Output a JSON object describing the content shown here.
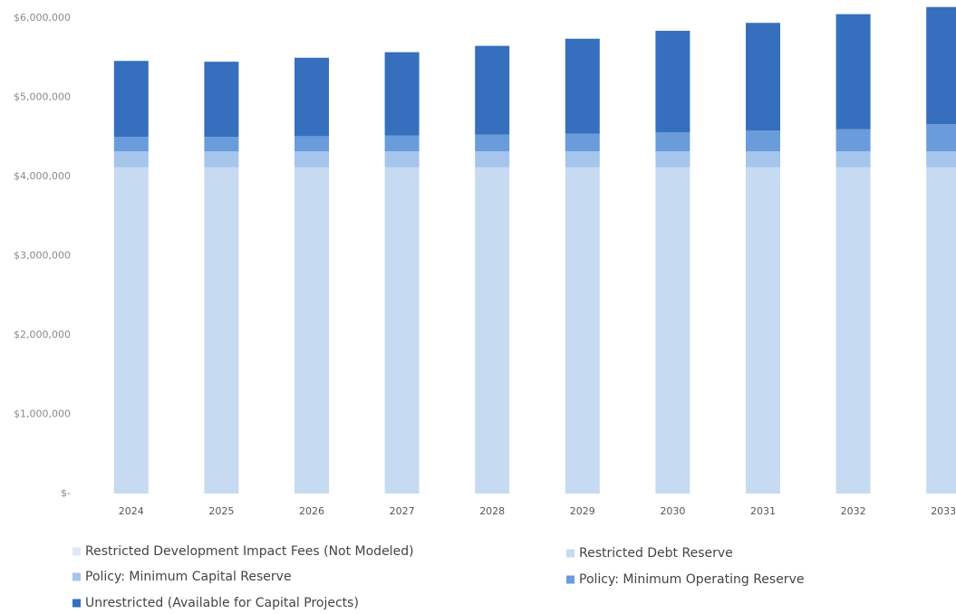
{
  "chart_data": {
    "type": "stacked_bar",
    "categories": [
      "2024",
      "2025",
      "2026",
      "2027",
      "2028",
      "2029",
      "2030",
      "2031",
      "2032",
      "2033"
    ],
    "series": [
      {
        "name": "Restricted Development Impact Fees (Not Modeled)",
        "color": "#dfe7f2",
        "values": [
          0,
          0,
          0,
          0,
          0,
          0,
          0,
          0,
          0,
          0
        ]
      },
      {
        "name": "Restricted Debt Reserve",
        "color": "#c6daf2",
        "values": [
          4120000,
          4120000,
          4120000,
          4120000,
          4120000,
          4120000,
          4120000,
          4120000,
          4120000,
          4120000
        ]
      },
      {
        "name": "Policy: Minimum Capital Reserve",
        "color": "#a5c5ec",
        "values": [
          200000,
          200000,
          200000,
          200000,
          200000,
          200000,
          200000,
          200000,
          200000,
          200000
        ]
      },
      {
        "name": "Policy: Minimum Operating Reserve",
        "color": "#6a9cdb",
        "values": [
          180000,
          180000,
          190000,
          200000,
          210000,
          220000,
          240000,
          260000,
          280000,
          340000
        ]
      },
      {
        "name": "Unrestricted (Available for Capital Projects)",
        "color": "#356fbd",
        "values": [
          960000,
          950000,
          990000,
          1050000,
          1120000,
          1200000,
          1280000,
          1360000,
          1450000,
          1480000
        ]
      }
    ],
    "ylim": [
      0,
      6200000
    ],
    "yticks": [
      {
        "value": 0,
        "label": "$-"
      },
      {
        "value": 1000000,
        "label": "$1,000,000"
      },
      {
        "value": 2000000,
        "label": "$2,000,000"
      },
      {
        "value": 3000000,
        "label": "$3,000,000"
      },
      {
        "value": 4000000,
        "label": "$4,000,000"
      },
      {
        "value": 5000000,
        "label": "$5,000,000"
      },
      {
        "value": 6000000,
        "label": "$6,000,000"
      }
    ],
    "legend": "bottom"
  }
}
